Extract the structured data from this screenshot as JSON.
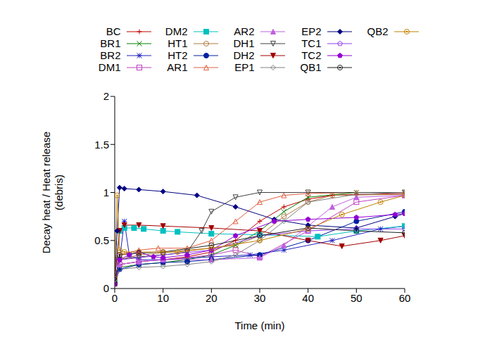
{
  "chart_data": {
    "type": "line",
    "xlabel": "Time (min)",
    "ylabel": "Decay heat / Heat release\n(debris)",
    "xlim": [
      0,
      60
    ],
    "xticks": [
      0,
      10,
      20,
      30,
      40,
      50,
      60
    ],
    "ylim": [
      0,
      2
    ],
    "yticks": [
      0,
      0.5,
      1,
      1.5,
      2
    ],
    "legend": "top",
    "series": [
      {
        "name": "BC",
        "color": "#c00000",
        "marker": "plus",
        "x": [
          0,
          1,
          5,
          10,
          15,
          20,
          25,
          30,
          35,
          40,
          45,
          50,
          60
        ],
        "values": [
          0.05,
          0.25,
          0.28,
          0.3,
          0.33,
          0.38,
          0.5,
          0.7,
          0.85,
          0.93,
          0.97,
          0.98,
          0.99
        ]
      },
      {
        "name": "BR1",
        "color": "#008000",
        "marker": "cross",
        "x": [
          0,
          1,
          5,
          10,
          15,
          20,
          25,
          30,
          35,
          40,
          50,
          60
        ],
        "values": [
          0.05,
          0.22,
          0.25,
          0.27,
          0.3,
          0.35,
          0.45,
          0.6,
          0.8,
          0.95,
          1.0,
          1.0
        ]
      },
      {
        "name": "BR2",
        "color": "#2020c0",
        "marker": "star",
        "x": [
          0,
          1,
          2,
          3,
          5,
          10,
          20,
          28,
          35,
          45,
          55,
          60
        ],
        "values": [
          0.1,
          0.3,
          0.7,
          0.35,
          0.3,
          0.3,
          0.33,
          0.35,
          0.4,
          0.5,
          0.62,
          0.65
        ]
      },
      {
        "name": "DM1",
        "color": "#c040c0",
        "marker": "square-open",
        "x": [
          0,
          1,
          5,
          10,
          15,
          20,
          25,
          30,
          40,
          50,
          60
        ],
        "values": [
          0.05,
          0.25,
          0.28,
          0.3,
          0.32,
          0.35,
          0.4,
          0.33,
          0.6,
          0.9,
          0.97
        ]
      },
      {
        "name": "DM2",
        "color": "#00c0c0",
        "marker": "square",
        "x": [
          0,
          1,
          2,
          4,
          6,
          10,
          13,
          20,
          30,
          42,
          50,
          60
        ],
        "values": [
          0.1,
          0.6,
          0.63,
          0.63,
          0.62,
          0.6,
          0.59,
          0.57,
          0.56,
          0.54,
          0.6,
          0.65
        ]
      },
      {
        "name": "HT1",
        "color": "#b07840",
        "marker": "circle-open",
        "x": [
          0,
          1,
          5,
          10,
          15,
          20,
          25,
          30,
          35,
          40,
          45,
          60
        ],
        "values": [
          0.05,
          0.3,
          0.35,
          0.37,
          0.4,
          0.42,
          0.45,
          0.55,
          0.75,
          0.9,
          0.97,
          0.98
        ]
      },
      {
        "name": "HT2",
        "color": "#0020a0",
        "marker": "circle",
        "x": [
          0,
          1,
          5,
          10,
          15,
          20,
          30,
          40,
          50,
          60
        ],
        "values": [
          0.05,
          0.2,
          0.25,
          0.27,
          0.28,
          0.3,
          0.35,
          0.5,
          0.7,
          0.8
        ]
      },
      {
        "name": "AR1",
        "color": "#e06040",
        "marker": "triangle-open",
        "x": [
          0,
          1,
          5,
          9,
          15,
          20,
          25,
          30,
          35,
          40,
          50,
          60
        ],
        "values": [
          0.05,
          0.35,
          0.4,
          0.42,
          0.42,
          0.5,
          0.7,
          0.9,
          0.97,
          0.99,
          1.0,
          1.0
        ]
      },
      {
        "name": "AR2",
        "color": "#c060e0",
        "marker": "triangle",
        "x": [
          0,
          1,
          5,
          10,
          20,
          30,
          35,
          40,
          45,
          50,
          60
        ],
        "values": [
          0.05,
          0.25,
          0.28,
          0.3,
          0.3,
          0.32,
          0.45,
          0.65,
          0.85,
          0.95,
          0.97
        ]
      },
      {
        "name": "DH1",
        "color": "#404040",
        "marker": "triangle-down-open",
        "x": [
          0,
          1,
          5,
          10,
          15,
          18,
          20,
          25,
          30,
          40,
          60
        ],
        "values": [
          0.05,
          0.3,
          0.33,
          0.35,
          0.38,
          0.6,
          0.8,
          0.95,
          1.0,
          1.0,
          1.0
        ]
      },
      {
        "name": "DH2",
        "color": "#a00000",
        "marker": "triangle-down",
        "x": [
          0,
          1,
          2,
          5,
          10,
          20,
          30,
          40,
          47,
          55,
          60
        ],
        "values": [
          0.1,
          0.6,
          0.66,
          0.66,
          0.65,
          0.63,
          0.6,
          0.5,
          0.44,
          0.5,
          0.55
        ]
      },
      {
        "name": "EP1",
        "color": "#808080",
        "marker": "diamond-open",
        "x": [
          0,
          1,
          5,
          10,
          15,
          20,
          25,
          30,
          35,
          40,
          50,
          60
        ],
        "values": [
          0.05,
          0.2,
          0.22,
          0.23,
          0.25,
          0.28,
          0.35,
          0.5,
          0.7,
          0.9,
          0.98,
          1.0
        ]
      },
      {
        "name": "EP2",
        "color": "#000080",
        "marker": "diamond",
        "x": [
          0,
          0.5,
          1,
          2,
          5,
          10,
          17,
          25,
          33,
          40,
          50,
          58,
          60
        ],
        "values": [
          0.1,
          0.6,
          1.05,
          1.04,
          1.03,
          1.01,
          0.97,
          0.85,
          0.72,
          0.66,
          0.63,
          0.75,
          0.78
        ]
      },
      {
        "name": "TC1",
        "color": "#9040f0",
        "marker": "pentagon-open",
        "x": [
          0,
          1,
          5,
          10,
          20,
          30,
          40,
          50,
          60
        ],
        "values": [
          0.05,
          0.3,
          0.32,
          0.35,
          0.4,
          0.55,
          0.6,
          0.62,
          0.62
        ]
      },
      {
        "name": "TC2",
        "color": "#9400d3",
        "marker": "pentagon",
        "x": [
          0,
          1,
          3,
          5,
          8,
          10,
          15,
          20,
          25,
          33,
          40,
          50,
          58,
          60
        ],
        "values": [
          0.05,
          0.3,
          0.35,
          0.38,
          0.33,
          0.32,
          0.35,
          0.4,
          0.55,
          0.7,
          0.72,
          0.74,
          0.77,
          0.78
        ]
      },
      {
        "name": "QB1",
        "color": "#202020",
        "marker": "circle-dot",
        "x": [
          0,
          1,
          5,
          10,
          20,
          30,
          40,
          50,
          60
        ],
        "values": [
          0.05,
          0.35,
          0.37,
          0.38,
          0.45,
          0.55,
          0.63,
          0.6,
          0.58
        ]
      },
      {
        "name": "QB2",
        "color": "#c08000",
        "marker": "circle-dot",
        "x": [
          0,
          0.5,
          1,
          2,
          5,
          10,
          13,
          20,
          30,
          40,
          47,
          55,
          60
        ],
        "values": [
          0.1,
          0.97,
          0.4,
          0.38,
          0.38,
          0.38,
          0.38,
          0.42,
          0.5,
          0.62,
          0.77,
          0.9,
          0.97
        ]
      }
    ]
  }
}
